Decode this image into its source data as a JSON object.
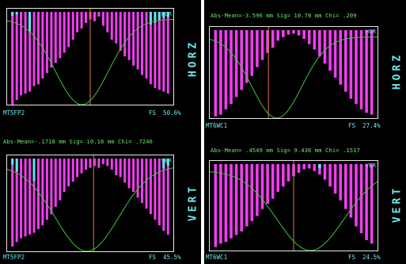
{
  "panels": {
    "left": {
      "top": {
        "tag": "HOR",
        "side_label": "HORZ",
        "id_label": "MT5FP2",
        "fs_label": "FS  50.6%",
        "stats": ""
      },
      "bottom": {
        "tag": "VER",
        "side_label": "VERT",
        "id_label": "MT5FP2",
        "fs_label": "FS  45.5%",
        "stats": "Abs-Mean=-.1718 mm Sig= 10.16 mm Chi= .7246"
      }
    },
    "right": {
      "top": {
        "tag": "HOR",
        "side_label": "HORZ",
        "id_label": "MT6WC1",
        "fs_label": "FS  27.4%",
        "stats": "Abs-Mean=-3.596 mm Sig= 10.78 mm Chi= .209"
      },
      "bottom": {
        "tag": "VER",
        "side_label": "VERT",
        "id_label": "MT6WC1",
        "fs_label": "FS  24.5%",
        "stats": "Abs-Mean= .4549 mm Sig= 9.436 mm Chi= .1517"
      }
    }
  },
  "colors": {
    "bars": "#f23cf2",
    "cyan_bars": "#5ee6ee",
    "fit": "#3fc23f",
    "center": "#e07a3a",
    "text": "#6ee8ee",
    "stats": "#6fe36f"
  },
  "chart_data": [
    {
      "type": "bar",
      "name": "MT5FP2 HOR",
      "values": [
        1.0,
        0.95,
        0.9,
        0.88,
        0.86,
        0.8,
        0.78,
        0.72,
        0.66,
        0.6,
        0.55,
        0.5,
        0.44,
        0.38,
        0.3,
        0.22,
        0.18,
        0.12,
        0.08,
        0.1,
        0.05,
        0.15,
        0.22,
        0.3,
        0.34,
        0.42,
        0.48,
        0.52,
        0.58,
        0.62,
        0.68,
        0.72,
        0.78,
        0.82,
        0.84,
        0.86,
        0.88
      ],
      "cyan_values": [
        0.95,
        0.98,
        0,
        0,
        0.6,
        0,
        0,
        0,
        0,
        0,
        0,
        0,
        0,
        0,
        0,
        0,
        0,
        0,
        0,
        0,
        0,
        0,
        0,
        0,
        0,
        0,
        0,
        0,
        0,
        0,
        0,
        0,
        0.76,
        0.8,
        0.85,
        0.9,
        0.92
      ],
      "center": 0.5,
      "fit_mean": 0.45,
      "fit_sigma": 0.16
    },
    {
      "type": "bar",
      "name": "MT5FP2 VER",
      "values": [
        0.95,
        0.9,
        0.86,
        0.84,
        0.82,
        0.8,
        0.76,
        0.72,
        0.66,
        0.6,
        0.52,
        0.45,
        0.36,
        0.3,
        0.25,
        0.2,
        0.16,
        0.12,
        0.1,
        0.08,
        0.1,
        0.06,
        0.08,
        0.12,
        0.18,
        0.2,
        0.26,
        0.32,
        0.36,
        0.42,
        0.48,
        0.54,
        0.6,
        0.66,
        0.72,
        0.78,
        0.82
      ],
      "cyan_values": [
        0.9,
        0.75,
        0,
        0,
        0,
        0.55,
        0,
        0,
        0,
        0,
        0,
        0,
        0,
        0,
        0,
        0,
        0,
        0,
        0,
        0,
        0,
        0,
        0,
        0,
        0,
        0,
        0,
        0,
        0,
        0,
        0,
        0,
        0,
        0,
        0,
        0.82,
        0.88
      ],
      "center": 0.52,
      "fit_mean": 0.48,
      "fit_sigma": 0.19
    },
    {
      "type": "bar",
      "name": "MT6WC1 HOR",
      "values": [
        0.98,
        0.96,
        0.9,
        0.84,
        0.76,
        0.68,
        0.6,
        0.52,
        0.42,
        0.34,
        0.26,
        0.2,
        0.12,
        0.08,
        0.05,
        0.04,
        0.06,
        0.1,
        0.16,
        0.22,
        0.3,
        0.38,
        0.46,
        0.54,
        0.62,
        0.7,
        0.78,
        0.84,
        0.9,
        0.94,
        0.96
      ],
      "cyan_values": [],
      "center": 0.35,
      "fit_mean": 0.4,
      "fit_sigma": 0.15
    },
    {
      "type": "bar",
      "name": "MT6WC1 VER",
      "values": [
        0.96,
        0.92,
        0.9,
        0.86,
        0.82,
        0.78,
        0.72,
        0.66,
        0.6,
        0.52,
        0.46,
        0.4,
        0.32,
        0.26,
        0.2,
        0.14,
        0.1,
        0.06,
        0.05,
        0.08,
        0.12,
        0.18,
        0.26,
        0.34,
        0.42,
        0.52,
        0.62,
        0.72,
        0.8,
        0.88,
        0.92
      ],
      "cyan_values": [
        0,
        0,
        0,
        0,
        0,
        0,
        0,
        0,
        0,
        0,
        0,
        0,
        0,
        0,
        0,
        0,
        0,
        0,
        0,
        0,
        0.94,
        0,
        0,
        0,
        0,
        0,
        0,
        0,
        0,
        0,
        0
      ],
      "center": 0.5,
      "fit_mean": 0.6,
      "fit_sigma": 0.2
    }
  ]
}
